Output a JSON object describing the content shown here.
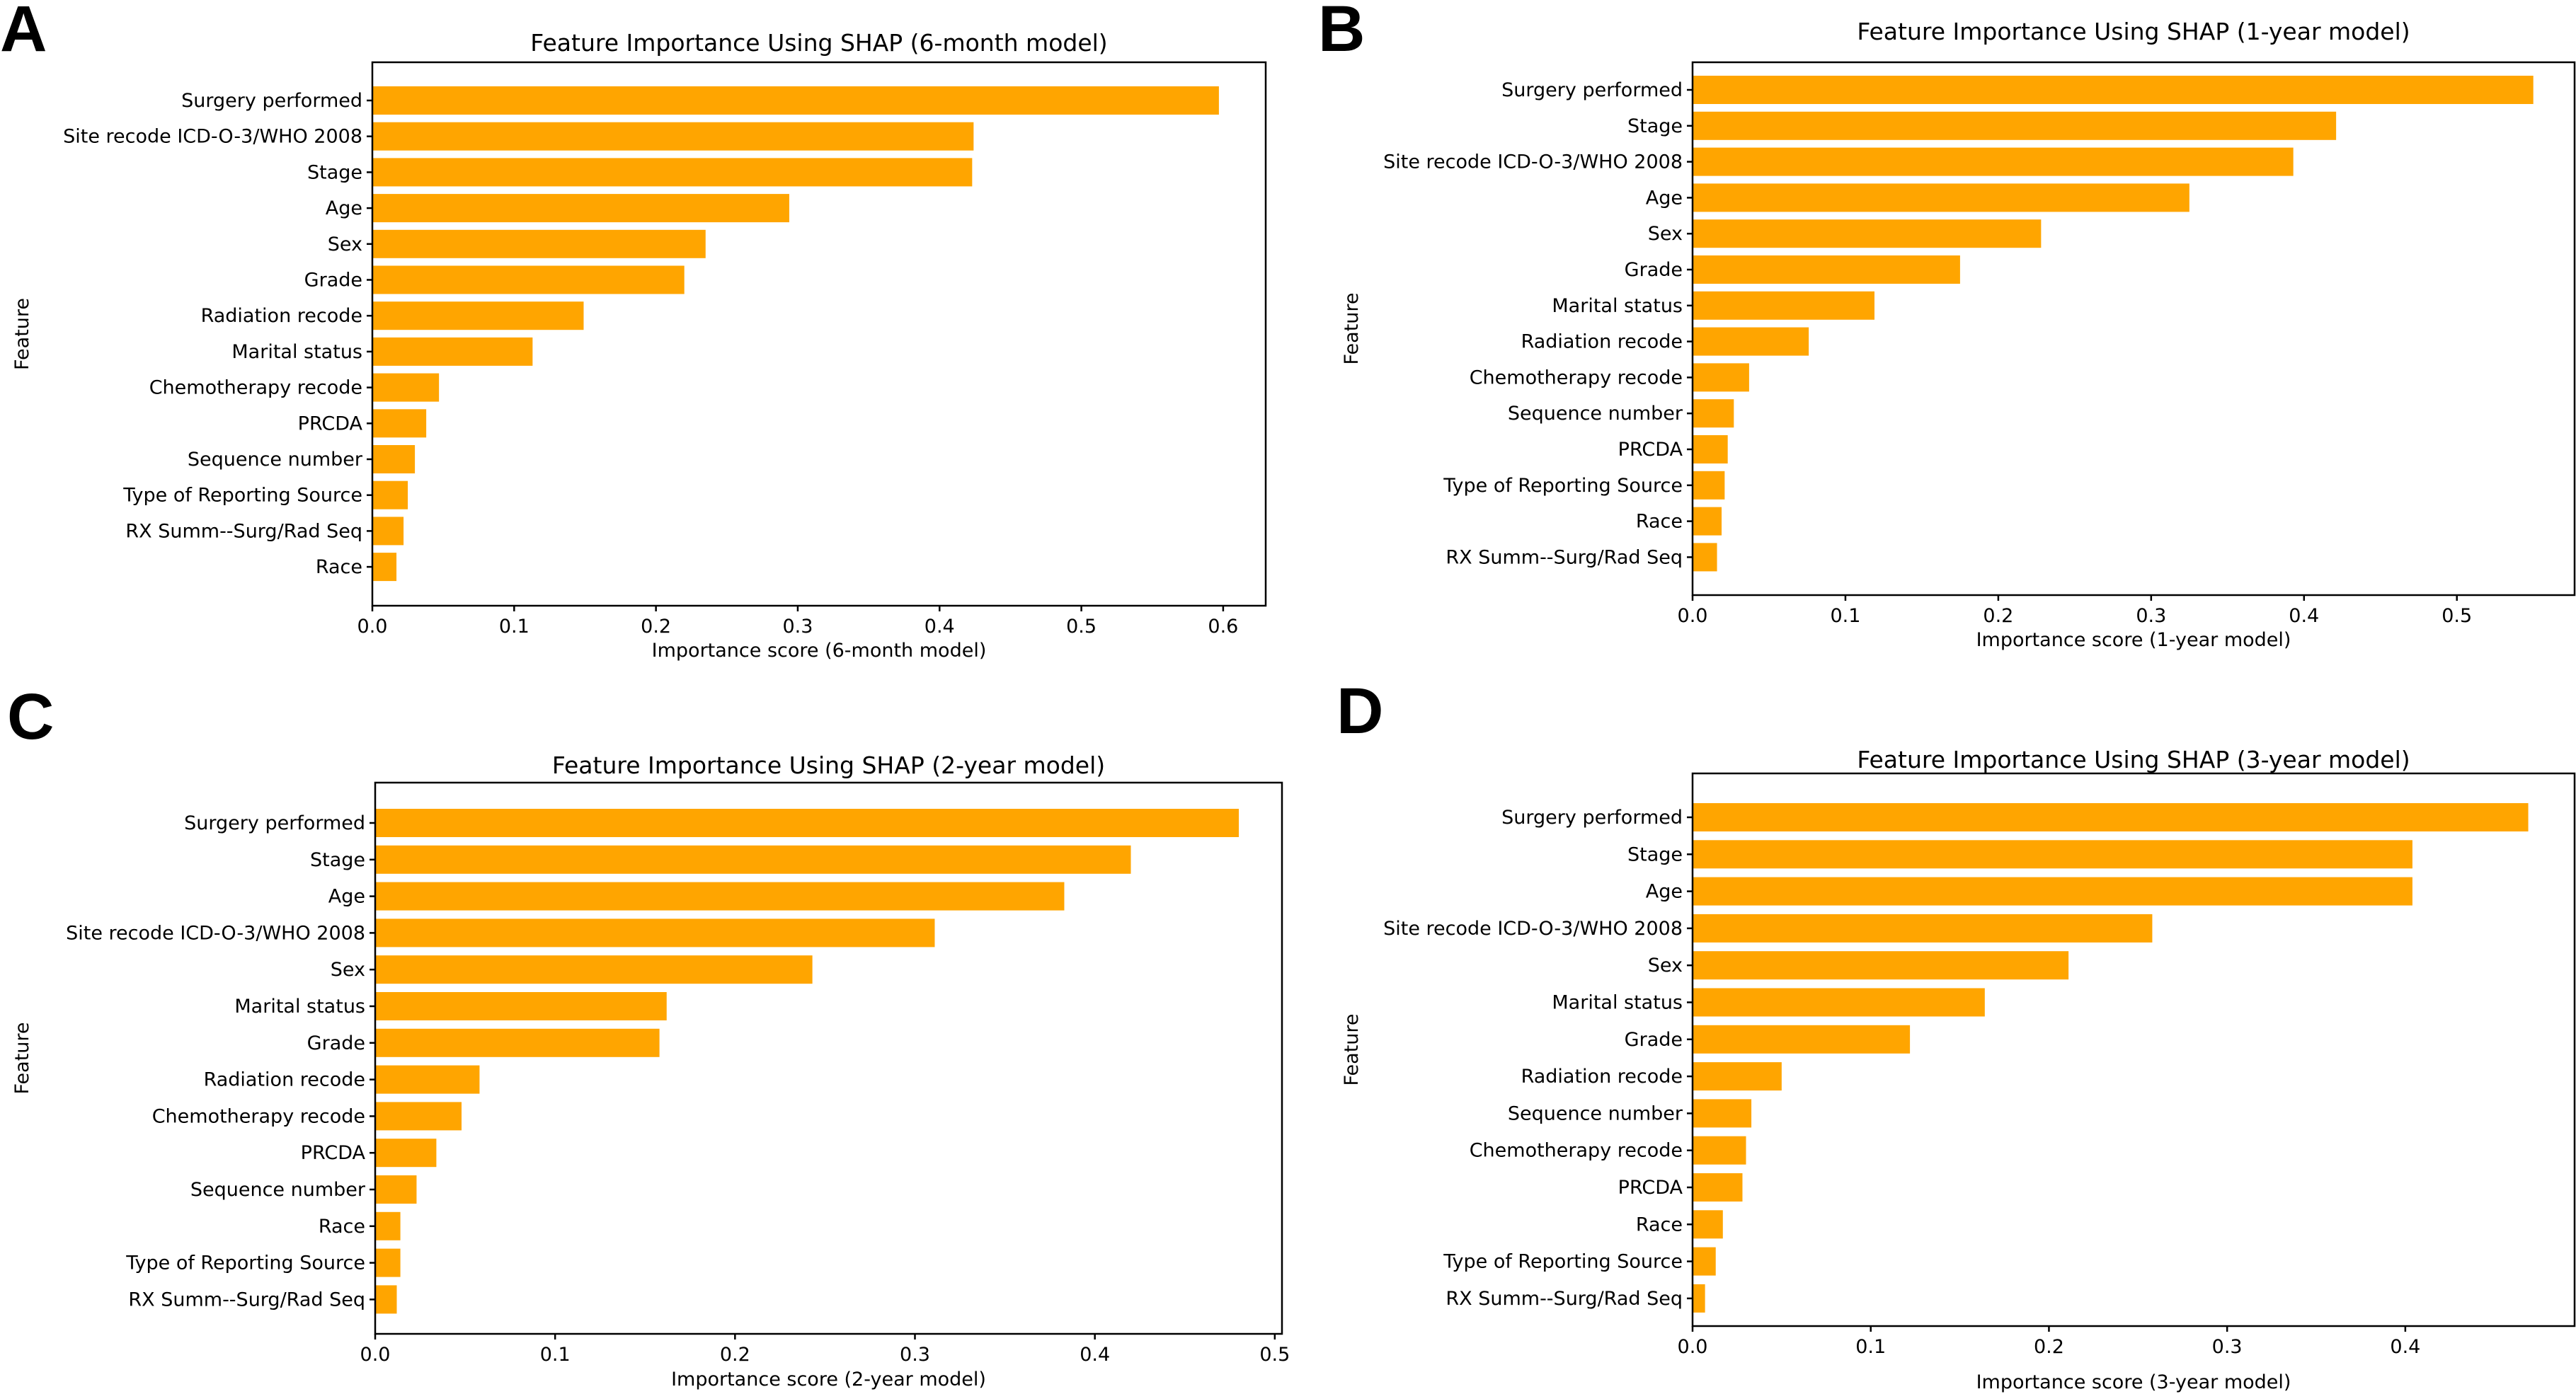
{
  "figure": {
    "bar_color": "#FFA500",
    "panel_letters": [
      "A",
      "B",
      "C",
      "D"
    ]
  },
  "chart_data": [
    {
      "type": "bar",
      "orientation": "horizontal",
      "panel": "A",
      "title": "Feature Importance Using SHAP (6-month model)",
      "xlabel": "Importance score (6-month model)",
      "ylabel": "Feature",
      "xlim": [
        0,
        0.63
      ],
      "xticks": [
        0.0,
        0.1,
        0.2,
        0.3,
        0.4,
        0.5,
        0.6
      ],
      "xtick_labels": [
        "0.0",
        "0.1",
        "0.2",
        "0.3",
        "0.4",
        "0.5",
        "0.6"
      ],
      "categories": [
        "Surgery performed",
        "Site recode ICD-O-3/WHO 2008",
        "Stage",
        "Age",
        "Sex",
        "Grade",
        "Radiation recode",
        "Marital status",
        "Chemotherapy recode",
        "PRCDA",
        "Sequence number",
        "Type of Reporting Source",
        "RX Summ--Surg/Rad Seq",
        "Race"
      ],
      "values": [
        0.597,
        0.424,
        0.423,
        0.294,
        0.235,
        0.22,
        0.149,
        0.113,
        0.047,
        0.038,
        0.03,
        0.025,
        0.022,
        0.017
      ]
    },
    {
      "type": "bar",
      "orientation": "horizontal",
      "panel": "B",
      "title": "Feature Importance Using SHAP (1-year model)",
      "xlabel": "Importance score (1-year model)",
      "ylabel": "Feature",
      "xlim": [
        0,
        0.577
      ],
      "xticks": [
        0.0,
        0.1,
        0.2,
        0.3,
        0.4,
        0.5
      ],
      "xtick_labels": [
        "0.0",
        "0.1",
        "0.2",
        "0.3",
        "0.4",
        "0.5"
      ],
      "categories": [
        "Surgery performed",
        "Stage",
        "Site recode ICD-O-3/WHO 2008",
        "Age",
        "Sex",
        "Grade",
        "Marital status",
        "Radiation recode",
        "Chemotherapy recode",
        "Sequence number",
        "PRCDA",
        "Type of Reporting Source",
        "Race",
        "RX Summ--Surg/Rad Seq"
      ],
      "values": [
        0.55,
        0.421,
        0.393,
        0.325,
        0.228,
        0.175,
        0.119,
        0.076,
        0.037,
        0.027,
        0.023,
        0.021,
        0.019,
        0.016
      ]
    },
    {
      "type": "bar",
      "orientation": "horizontal",
      "panel": "C",
      "title": "Feature Importance Using SHAP (2-year model)",
      "xlabel": "Importance score (2-year model)",
      "ylabel": "Feature",
      "xlim": [
        0,
        0.504
      ],
      "xticks": [
        0.0,
        0.1,
        0.2,
        0.3,
        0.4,
        0.5
      ],
      "xtick_labels": [
        "0.0",
        "0.1",
        "0.2",
        "0.3",
        "0.4",
        "0.5"
      ],
      "categories": [
        "Surgery performed",
        "Stage",
        "Age",
        "Site recode ICD-O-3/WHO 2008",
        "Sex",
        "Marital status",
        "Grade",
        "Radiation recode",
        "Chemotherapy recode",
        "PRCDA",
        "Sequence number",
        "Race",
        "Type of Reporting Source",
        "RX Summ--Surg/Rad Seq"
      ],
      "values": [
        0.48,
        0.42,
        0.383,
        0.311,
        0.243,
        0.162,
        0.158,
        0.058,
        0.048,
        0.034,
        0.023,
        0.014,
        0.014,
        0.012
      ]
    },
    {
      "type": "bar",
      "orientation": "horizontal",
      "panel": "D",
      "title": "Feature Importance Using SHAP (3-year model)",
      "xlabel": "Importance score (3-year model)",
      "ylabel": "Feature",
      "xlim": [
        0,
        0.495
      ],
      "xticks": [
        0.0,
        0.1,
        0.2,
        0.3,
        0.4
      ],
      "xtick_labels": [
        "0.0",
        "0.1",
        "0.2",
        "0.3",
        "0.4"
      ],
      "categories": [
        "Surgery performed",
        "Stage",
        "Age",
        "Site recode ICD-O-3/WHO 2008",
        "Sex",
        "Marital status",
        "Grade",
        "Radiation recode",
        "Sequence number",
        "Chemotherapy recode",
        "PRCDA",
        "Race",
        "Type of Reporting Source",
        "RX Summ--Surg/Rad Seq"
      ],
      "values": [
        0.469,
        0.404,
        0.404,
        0.258,
        0.211,
        0.164,
        0.122,
        0.05,
        0.033,
        0.03,
        0.028,
        0.017,
        0.013,
        0.007
      ]
    }
  ]
}
